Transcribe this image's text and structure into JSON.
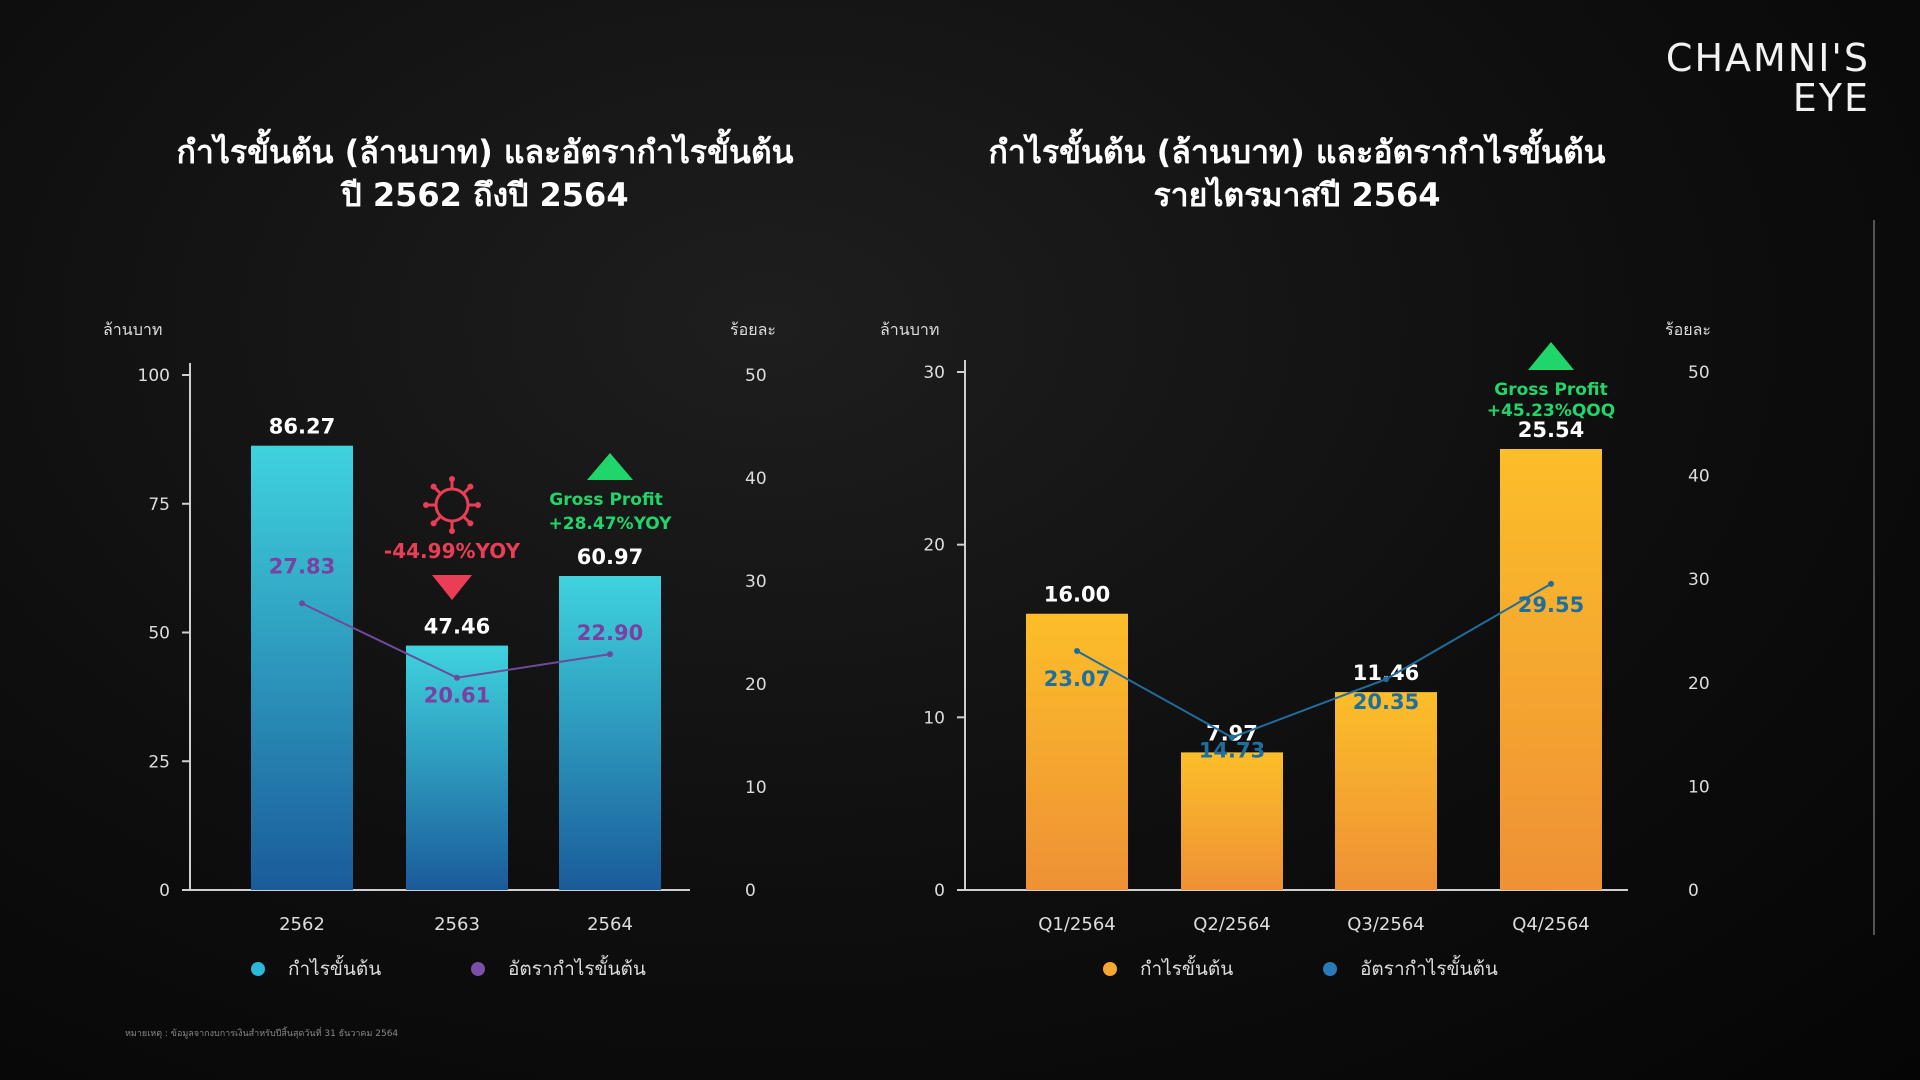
{
  "brand": {
    "line1": "CHAMNI'S",
    "line2": "EYE"
  },
  "footnote": "หมายเหตุ : ข้อมูลจากงบการเงินสำหรับปีสิ้นสุดวันที่ 31 ธันวาคม 2564",
  "chart_data": [
    {
      "type": "bar",
      "title": [
        "กำไรขั้นต้น (ล้านบาท) และอัตรากำไรขั้นต้น",
        "ปี 2562 ถึงปี 2564"
      ],
      "left_axis_label": "ล้านบาท",
      "right_axis_label": "ร้อยละ",
      "left_ylim": [
        0,
        100
      ],
      "left_ticks": [
        0,
        25,
        50,
        75,
        100
      ],
      "right_ylim": [
        0,
        50
      ],
      "right_ticks": [
        0,
        10,
        20,
        30,
        40,
        50
      ],
      "categories": [
        "2562",
        "2563",
        "2564"
      ],
      "value_labels": [
        "86.27",
        "47.46",
        "60.97"
      ],
      "percent_labels": [
        "27.83",
        "20.61",
        "22.90"
      ],
      "series": [
        {
          "name": "กำไรขั้นต้น",
          "type": "bar",
          "axis": "left",
          "values": [
            86.27,
            47.46,
            60.97
          ]
        },
        {
          "name": "อัตรากำไรขั้นต้น",
          "type": "line",
          "axis": "right",
          "values": [
            27.83,
            20.61,
            22.9
          ]
        }
      ],
      "annotations": [
        {
          "text": "-44.99%YOY",
          "category": "2563",
          "direction": "down"
        },
        {
          "text": "Gross Profit",
          "category": "2564",
          "direction": "up"
        },
        {
          "text": "+28.47%YOY",
          "category": "2564",
          "direction": "up"
        }
      ],
      "colors": {
        "bar_top": "#3ed0dc",
        "bar_bottom": "#1a5f9c",
        "line": "#6e4a9a",
        "legend_bar": "#2cb8d8",
        "legend_line": "#7a4fa8"
      },
      "legend_placement": "bottom"
    },
    {
      "type": "bar",
      "title": [
        "กำไรขั้นต้น (ล้านบาท) และอัตรากำไรขั้นต้น",
        "รายไตรมาสปี 2564"
      ],
      "left_axis_label": "ล้านบาท",
      "right_axis_label": "ร้อยละ",
      "left_ylim": [
        0,
        30
      ],
      "left_ticks": [
        0,
        10,
        20,
        30
      ],
      "right_ylim": [
        0,
        50
      ],
      "right_ticks": [
        0,
        10,
        20,
        30,
        40,
        50
      ],
      "categories": [
        "Q1/2564",
        "Q2/2564",
        "Q3/2564",
        "Q4/2564"
      ],
      "value_labels": [
        "16.00",
        "7.97",
        "11.46",
        "25.54"
      ],
      "percent_labels": [
        "23.07",
        "14.73",
        "20.35",
        "29.55"
      ],
      "series": [
        {
          "name": "กำไรขั้นต้น",
          "type": "bar",
          "axis": "left",
          "values": [
            16.0,
            7.97,
            11.46,
            25.54
          ]
        },
        {
          "name": "อัตรากำไรขั้นต้น",
          "type": "line",
          "axis": "right",
          "values": [
            23.07,
            14.73,
            20.35,
            29.55
          ]
        }
      ],
      "annotations": [
        {
          "text": "Gross Profit",
          "category": "Q4/2564",
          "direction": "up"
        },
        {
          "text": "+45.23%QOQ",
          "category": "Q4/2564",
          "direction": "up"
        }
      ],
      "colors": {
        "bar_top": "#fbbb2a",
        "bar_bottom": "#ef9434",
        "line": "#1f6d9c",
        "legend_bar": "#f7a631",
        "legend_line": "#2a7ab8"
      },
      "legend_placement": "bottom"
    }
  ]
}
